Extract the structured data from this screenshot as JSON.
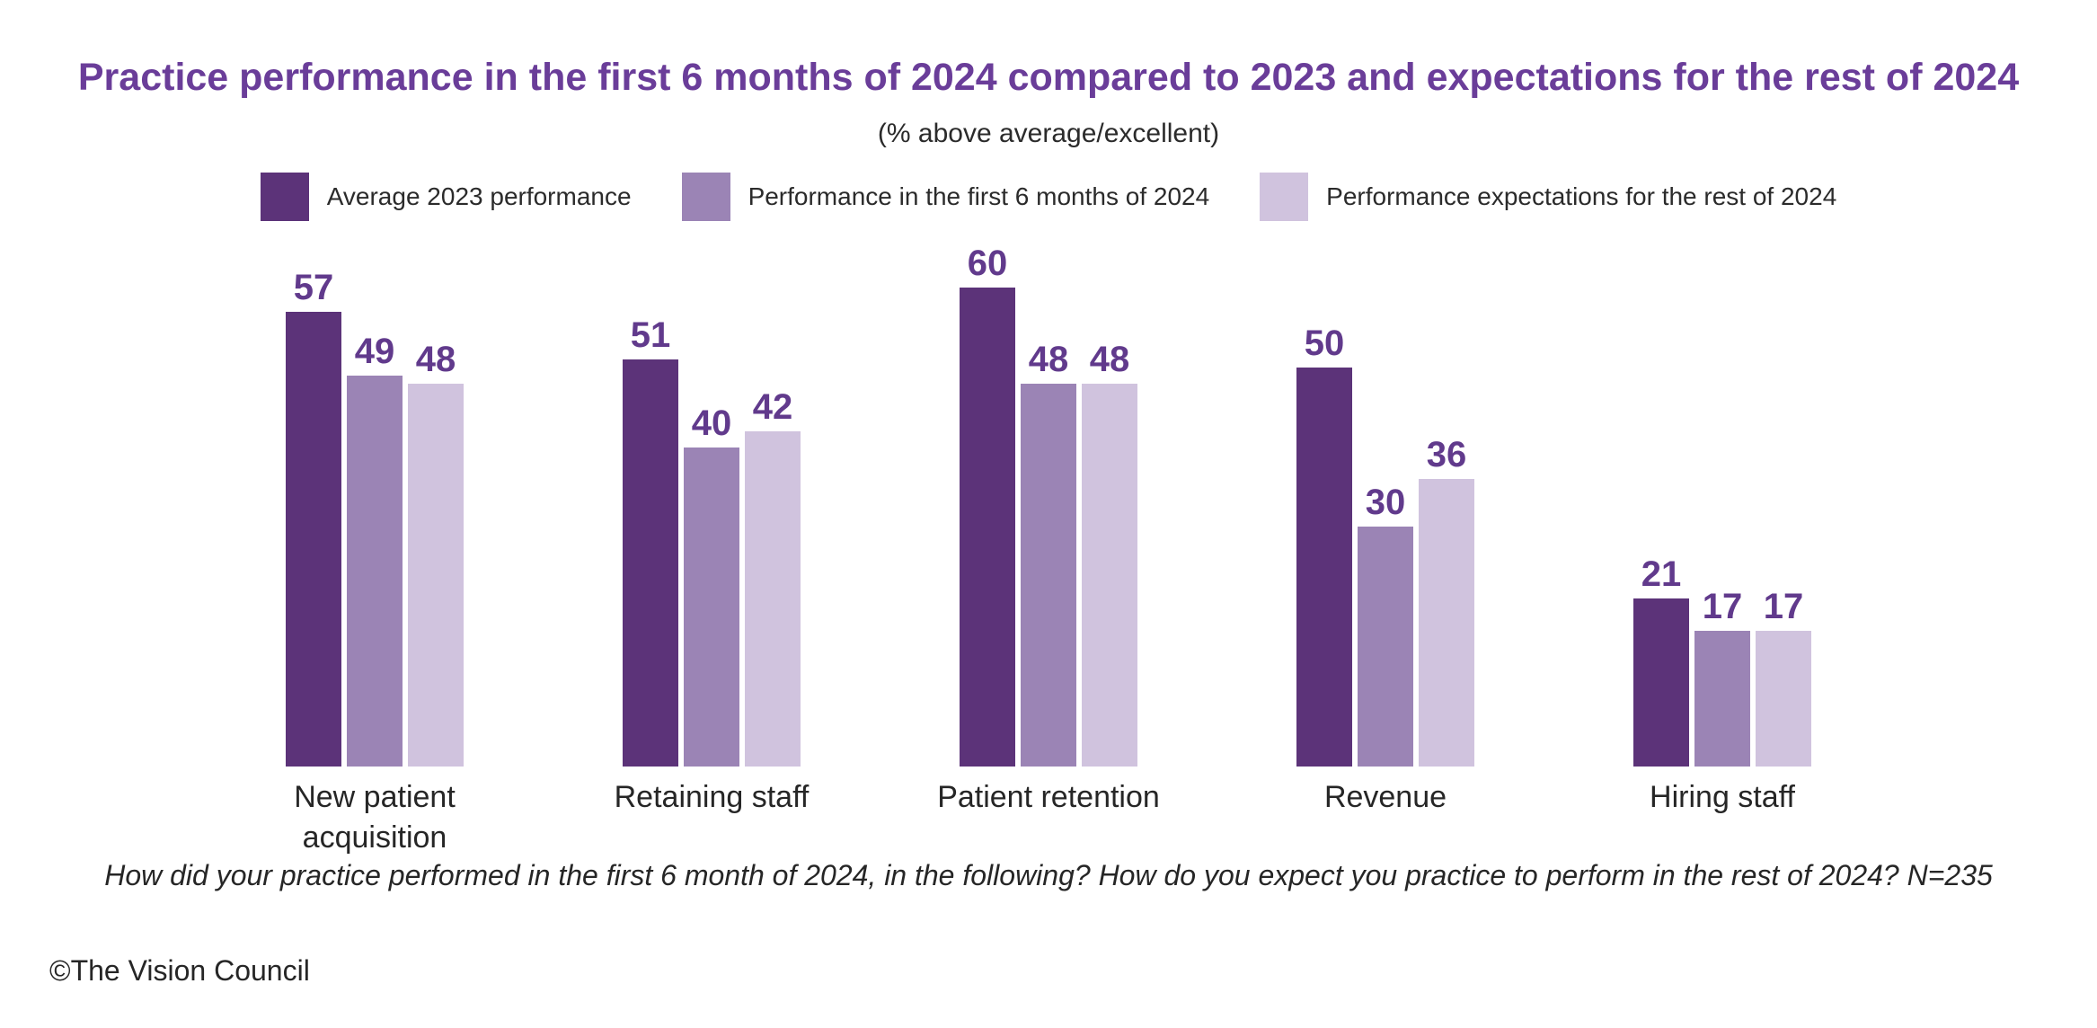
{
  "colors": {
    "background": "#ffffff",
    "title": "#6a3d99",
    "value_label": "#613a8c",
    "text": "#2b2b2b",
    "text_dark": "#262626",
    "bar_dark": "#5c3379",
    "bar_medium": "#9b84b5",
    "bar_light": "#d0c3de"
  },
  "chart_data": {
    "type": "bar",
    "title": "Practice performance in the first 6 months of 2024 compared to 2023 and expectations for the rest of 2024",
    "subtitle": "(% above average/excellent)",
    "categories": [
      "New patient acquisition",
      "Retaining staff",
      "Patient retention",
      "Revenue",
      "Hiring staff"
    ],
    "series": [
      {
        "name": "Average 2023 performance",
        "color": "#5c3379",
        "values": [
          57,
          51,
          60,
          50,
          21
        ]
      },
      {
        "name": "Performance in the first 6 months of 2024",
        "color": "#9b84b5",
        "values": [
          49,
          40,
          48,
          30,
          17
        ]
      },
      {
        "name": "Performance expectations for the rest of 2024",
        "color": "#d0c3de",
        "values": [
          48,
          42,
          48,
          36,
          17
        ]
      }
    ],
    "ylim": [
      0,
      60
    ],
    "grid": false,
    "legend_position": "top",
    "data_labels": true,
    "xlabel": "",
    "ylabel": ""
  },
  "footnote": "How did your practice performed in the first 6 month of 2024, in the following? How do you expect you practice to perform in the rest of 2024?  N=235",
  "copyright": "©The Vision Council"
}
